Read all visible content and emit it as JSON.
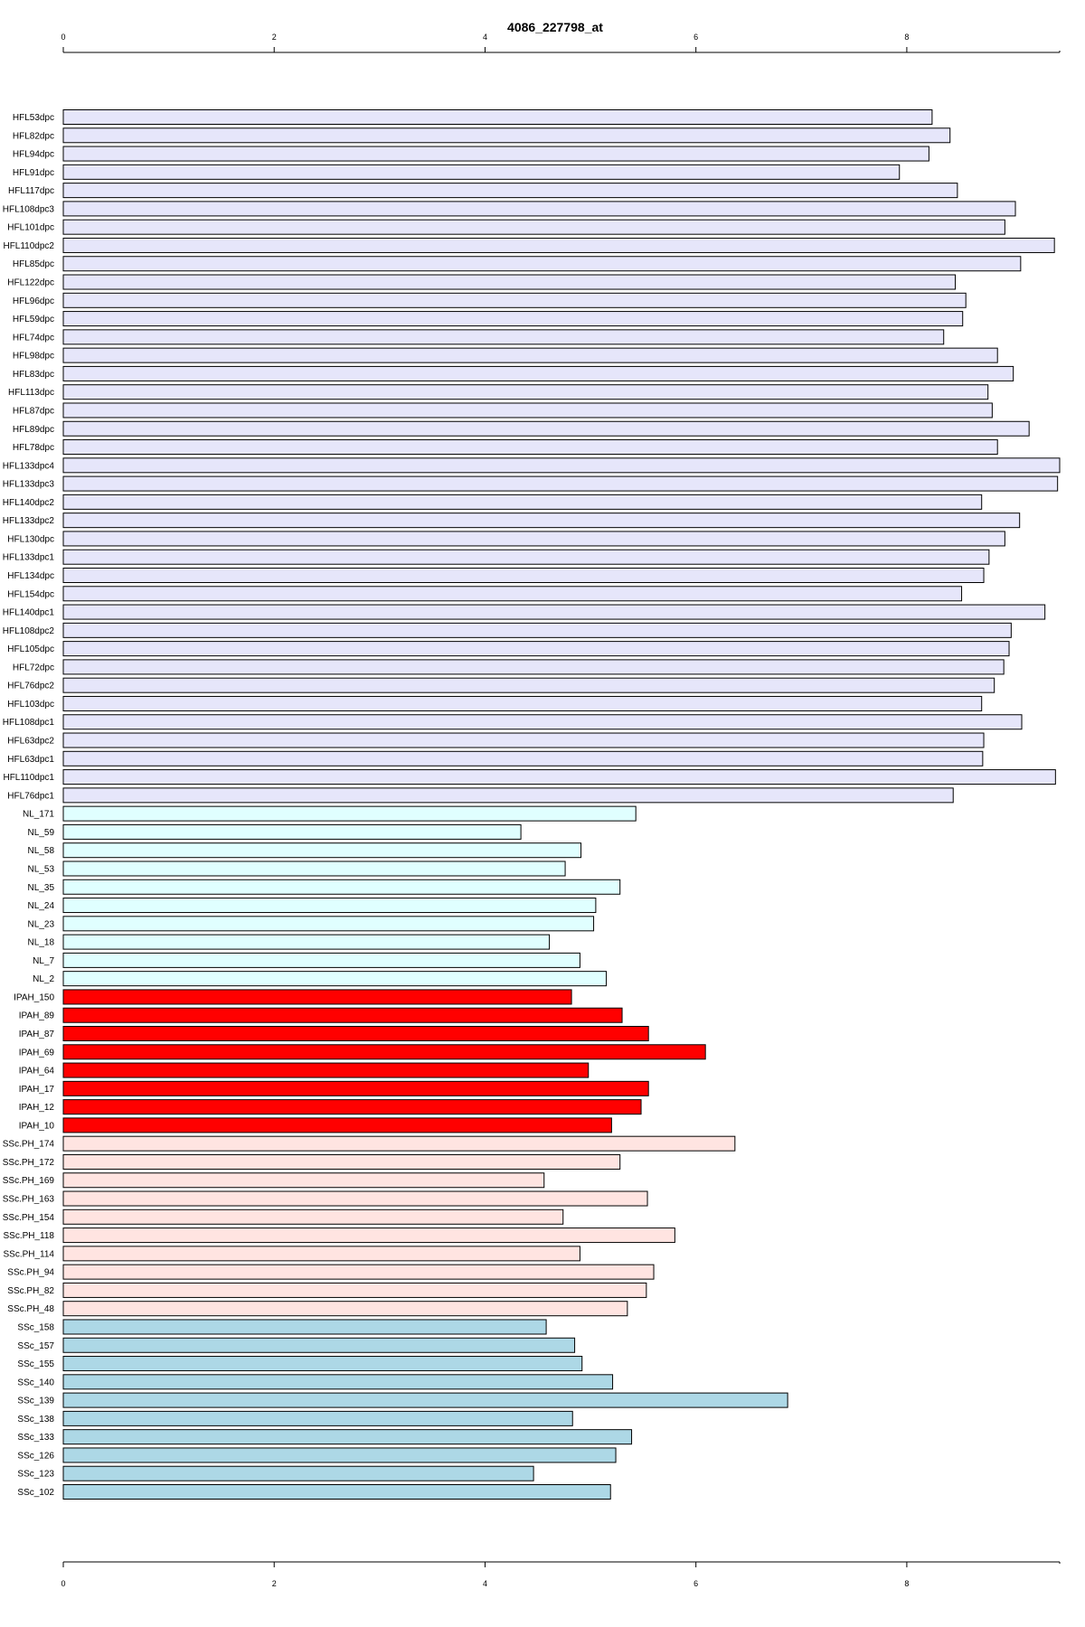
{
  "chart_data": {
    "type": "bar",
    "orientation": "horizontal",
    "title": "4086_227798_at",
    "xlim": [
      0,
      9.45
    ],
    "xticks": [
      0,
      2,
      4,
      6,
      8
    ],
    "grid": false,
    "groups": [
      {
        "name": "HFL",
        "color": "#e6e6fa"
      },
      {
        "name": "NL",
        "color": "#e0ffff"
      },
      {
        "name": "IPAH",
        "color": "#ff0000"
      },
      {
        "name": "SSc.PH",
        "color": "#ffe4e1"
      },
      {
        "name": "SSc",
        "color": "#add8e6"
      }
    ],
    "categories": [
      "HFL53dpc",
      "HFL82dpc",
      "HFL94dpc",
      "HFL91dpc",
      "HFL117dpc",
      "HFL108dpc3",
      "HFL101dpc",
      "HFL110dpc2",
      "HFL85dpc",
      "HFL122dpc",
      "HFL96dpc",
      "HFL59dpc",
      "HFL74dpc",
      "HFL98dpc",
      "HFL83dpc",
      "HFL113dpc",
      "HFL87dpc",
      "HFL89dpc",
      "HFL78dpc",
      "HFL133dpc4",
      "HFL133dpc3",
      "HFL140dpc2",
      "HFL133dpc2",
      "HFL130dpc",
      "HFL133dpc1",
      "HFL134dpc",
      "HFL154dpc",
      "HFL140dpc1",
      "HFL108dpc2",
      "HFL105dpc",
      "HFL72dpc",
      "HFL76dpc2",
      "HFL103dpc",
      "HFL108dpc1",
      "HFL63dpc2",
      "HFL63dpc1",
      "HFL110dpc1",
      "HFL76dpc1",
      "NL_171",
      "NL_59",
      "NL_58",
      "NL_53",
      "NL_35",
      "NL_24",
      "NL_23",
      "NL_18",
      "NL_7",
      "NL_2",
      "IPAH_150",
      "IPAH_89",
      "IPAH_87",
      "IPAH_69",
      "IPAH_64",
      "IPAH_17",
      "IPAH_12",
      "IPAH_10",
      "SSc.PH_174",
      "SSc.PH_172",
      "SSc.PH_169",
      "SSc.PH_163",
      "SSc.PH_154",
      "SSc.PH_118",
      "SSc.PH_114",
      "SSc.PH_94",
      "SSc.PH_82",
      "SSc.PH_48",
      "SSc_158",
      "SSc_157",
      "SSc_155",
      "SSc_140",
      "SSc_139",
      "SSc_138",
      "SSc_133",
      "SSc_126",
      "SSc_123",
      "SSc_102"
    ],
    "values": [
      8.24,
      8.41,
      8.21,
      7.93,
      8.48,
      9.03,
      8.93,
      9.4,
      9.08,
      8.46,
      8.56,
      8.53,
      8.35,
      8.86,
      9.01,
      8.77,
      8.81,
      9.16,
      8.86,
      9.45,
      9.43,
      8.71,
      9.07,
      8.93,
      8.78,
      8.73,
      8.52,
      9.31,
      8.99,
      8.97,
      8.92,
      8.83,
      8.71,
      9.09,
      8.73,
      8.72,
      9.41,
      8.44,
      5.43,
      4.34,
      4.91,
      4.76,
      5.28,
      5.05,
      5.03,
      4.61,
      4.9,
      5.15,
      4.82,
      5.3,
      5.55,
      6.09,
      4.98,
      5.55,
      5.48,
      5.2,
      6.37,
      5.28,
      4.56,
      5.54,
      4.74,
      5.8,
      4.9,
      5.6,
      5.53,
      5.35,
      4.58,
      4.85,
      4.92,
      5.21,
      6.87,
      4.83,
      5.39,
      5.24,
      4.46,
      5.19
    ],
    "group_of": [
      0,
      0,
      0,
      0,
      0,
      0,
      0,
      0,
      0,
      0,
      0,
      0,
      0,
      0,
      0,
      0,
      0,
      0,
      0,
      0,
      0,
      0,
      0,
      0,
      0,
      0,
      0,
      0,
      0,
      0,
      0,
      0,
      0,
      0,
      0,
      0,
      0,
      0,
      1,
      1,
      1,
      1,
      1,
      1,
      1,
      1,
      1,
      1,
      2,
      2,
      2,
      2,
      2,
      2,
      2,
      2,
      3,
      3,
      3,
      3,
      3,
      3,
      3,
      3,
      3,
      3,
      4,
      4,
      4,
      4,
      4,
      4,
      4,
      4,
      4,
      4
    ]
  }
}
